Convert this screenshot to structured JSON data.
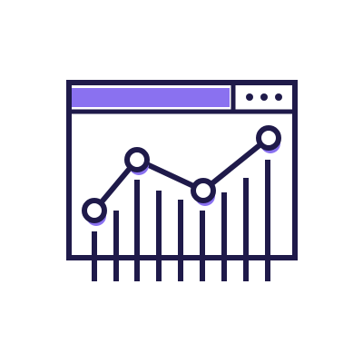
{
  "icon": {
    "name": "browser-analytics-icon",
    "window_dots": [
      "window-dot-1-icon",
      "window-dot-2-icon",
      "window-dot-3-icon"
    ],
    "chart_points_count": 4,
    "bar_count": 9
  },
  "colors": {
    "outline": "#1f1a4a",
    "accent": "#8a71f0",
    "background": "#ffffff"
  }
}
